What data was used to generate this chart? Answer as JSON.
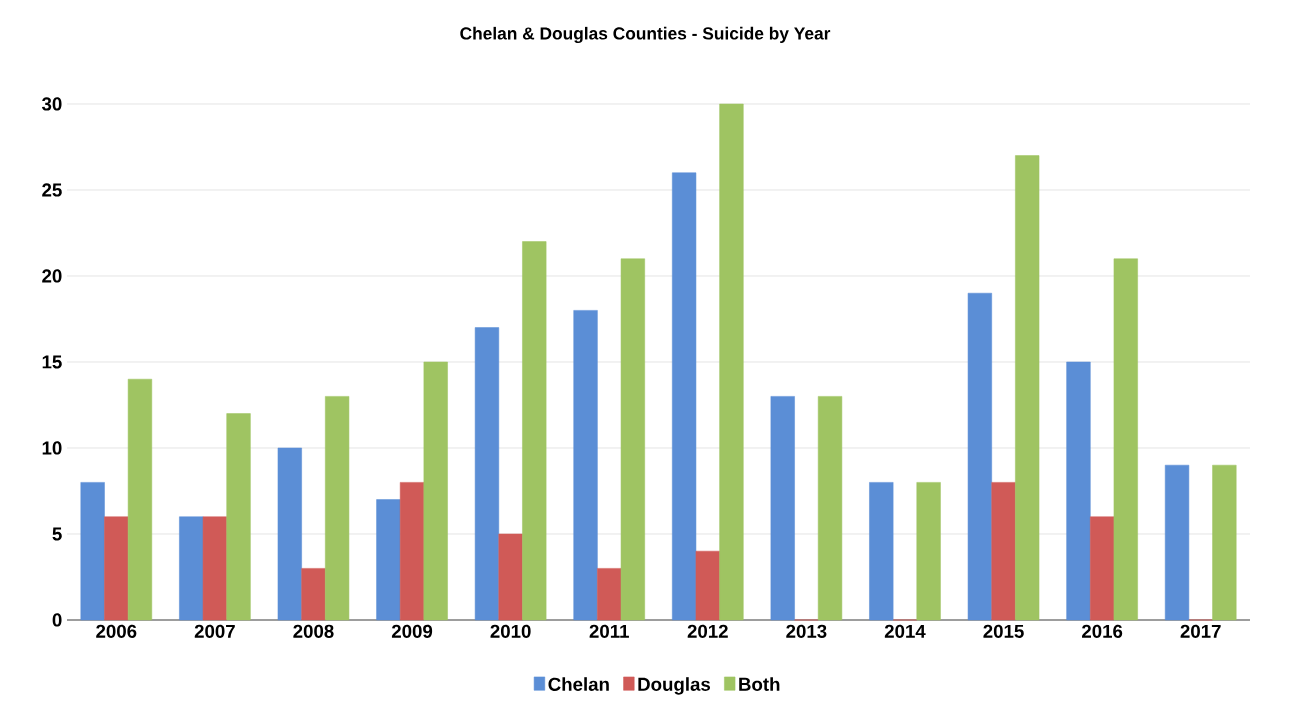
{
  "chart_data": {
    "type": "bar",
    "title": "Chelan & Douglas Counties - Suicide by Year",
    "categories": [
      "2006",
      "2007",
      "2008",
      "2009",
      "2010",
      "2011",
      "2012",
      "2013",
      "2014",
      "2015",
      "2016",
      "2017"
    ],
    "series": [
      {
        "name": "Chelan",
        "color": "#5b8ed6",
        "values": [
          8,
          6,
          10,
          7,
          17,
          18,
          26,
          13,
          8,
          19,
          15,
          9
        ]
      },
      {
        "name": "Douglas",
        "color": "#d05a57",
        "values": [
          6,
          6,
          3,
          8,
          5,
          3,
          4,
          0,
          0,
          8,
          6,
          0
        ]
      },
      {
        "name": "Both",
        "color": "#9fc462",
        "values": [
          14,
          12,
          13,
          15,
          22,
          21,
          30,
          13,
          8,
          27,
          21,
          9
        ]
      }
    ],
    "ylim": [
      0,
      30
    ],
    "yticks": [
      0,
      5,
      10,
      15,
      20,
      25,
      30
    ],
    "grid": "y",
    "legend": "bottom"
  }
}
